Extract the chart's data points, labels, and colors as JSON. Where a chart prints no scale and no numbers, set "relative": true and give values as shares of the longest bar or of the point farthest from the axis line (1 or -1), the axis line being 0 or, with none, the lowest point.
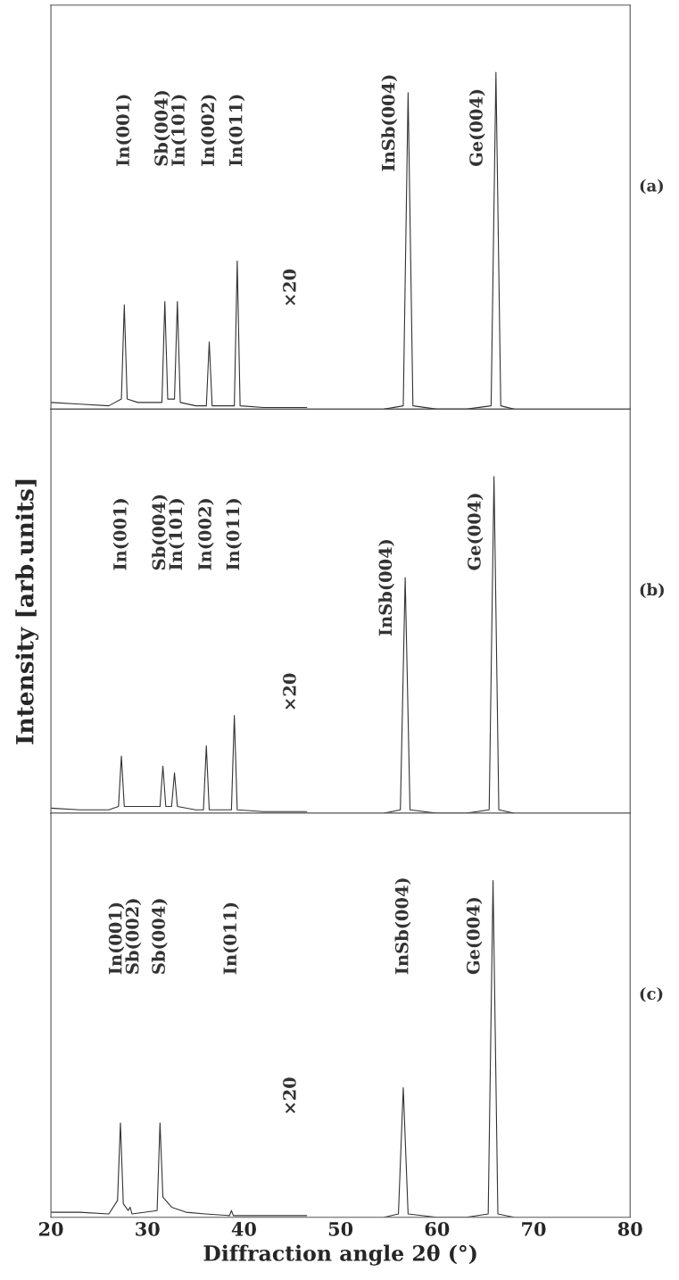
{
  "chart_data": [
    {
      "type": "line",
      "relative": true,
      "xlim": [
        20,
        80
      ],
      "xticks": [
        20,
        30,
        40,
        50,
        60,
        70,
        80
      ],
      "tick_labels": false,
      "x": [
        20,
        23,
        26,
        27.3,
        27.6,
        27.9,
        29,
        31.5,
        31.8,
        32.1,
        32.8,
        33.1,
        33.4,
        35,
        36.1,
        36.4,
        36.7,
        38,
        39.0,
        39.3,
        39.6,
        42,
        46.5,
        50,
        54.5,
        56.5,
        57.0,
        57.5,
        60,
        63,
        65.6,
        66.1,
        66.6,
        68
      ],
      "series": [
        {
          "color": "#333333",
          "values": [
            0.02,
            0.015,
            0.01,
            0.03,
            0.31,
            0.03,
            0.02,
            0.02,
            0.32,
            0.03,
            0.03,
            0.32,
            0.02,
            0.01,
            0.01,
            0.2,
            0.01,
            0.01,
            0.01,
            0.44,
            0.01,
            0.005,
            0.005,
            null,
            0,
            0.01,
            0.94,
            0.01,
            0,
            0,
            0.01,
            1.0,
            0.01,
            0
          ]
        }
      ],
      "annotations": [
        "In(001)",
        "Sb(004)",
        "In(101)",
        "In(002)",
        "In(011)",
        "InSb(004)",
        "Ge(004)",
        "×20",
        "(a)"
      ]
    },
    {
      "type": "line",
      "relative": true,
      "ylabel": "Intensity [arb.units]",
      "xlim": [
        20,
        80
      ],
      "xticks": [
        20,
        30,
        40,
        50,
        60,
        70,
        80
      ],
      "tick_labels": false,
      "x": [
        20,
        23,
        26,
        27.0,
        27.3,
        27.6,
        29,
        31.3,
        31.6,
        31.9,
        32.5,
        32.8,
        33.1,
        35,
        35.8,
        36.1,
        36.4,
        38,
        38.7,
        39.0,
        39.3,
        42,
        46.5,
        50,
        54.5,
        56.2,
        56.7,
        57.2,
        60,
        63,
        65.4,
        65.9,
        66.4,
        68
      ],
      "series": [
        {
          "color": "#333333",
          "values": [
            0.015,
            0.01,
            0.01,
            0.02,
            0.17,
            0.02,
            0.02,
            0.02,
            0.14,
            0.02,
            0.02,
            0.12,
            0.02,
            0.01,
            0.01,
            0.2,
            0.01,
            0.01,
            0.01,
            0.29,
            0.01,
            0.005,
            0.005,
            null,
            0,
            0.01,
            0.7,
            0.01,
            0,
            0,
            0.01,
            1.0,
            0.01,
            0
          ]
        }
      ],
      "annotations": [
        "In(001)",
        "Sb(004)",
        "In(101)",
        "In(002)",
        "In(011)",
        "InSb(004)",
        "Ge(004)",
        "×20",
        "(b)"
      ]
    },
    {
      "type": "line",
      "relative": true,
      "xlabel": "Diffraction angle 2θ (°)",
      "xlim": [
        20,
        80
      ],
      "xticks": [
        20,
        30,
        40,
        50,
        60,
        70,
        80
      ],
      "tick_labels": "x",
      "x": [
        20,
        23,
        26,
        26.9,
        27.2,
        27.5,
        28.0,
        28.2,
        28.4,
        31.0,
        31.3,
        31.6,
        32.5,
        34,
        36,
        38.5,
        38.7,
        38.9,
        42,
        46.5,
        50,
        54.5,
        56.0,
        56.5,
        57.0,
        60,
        63,
        65.3,
        65.8,
        66.3,
        68
      ],
      "series": [
        {
          "color": "#333333",
          "values": [
            0.015,
            0.015,
            0.01,
            0.05,
            0.28,
            0.04,
            0.02,
            0.03,
            0.01,
            0.02,
            0.28,
            0.06,
            0.03,
            0.015,
            0.01,
            0.005,
            0.02,
            0.005,
            0.005,
            0.005,
            null,
            0,
            0.01,
            0.385,
            0.01,
            0,
            0,
            0.01,
            1.0,
            0.01,
            0
          ]
        }
      ],
      "annotations": [
        "In(001)",
        "Sb(002)",
        "Sb(004)",
        "In(011)",
        "InSb(004)",
        "Ge(004)",
        "×20",
        "(c)"
      ]
    }
  ]
}
